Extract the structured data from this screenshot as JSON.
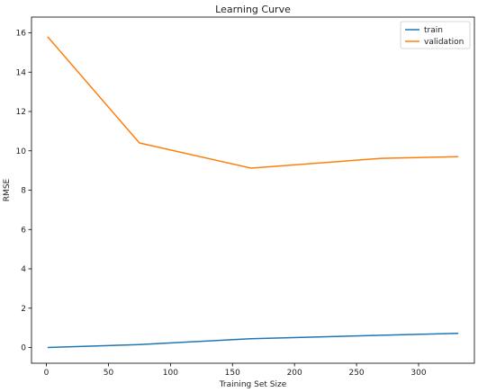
{
  "chart_data": {
    "type": "line",
    "title": "Learning Curve",
    "xlabel": "Training Set Size",
    "ylabel": "RMSE",
    "xlim": [
      -12,
      345
    ],
    "ylim": [
      -0.8,
      16.8
    ],
    "xticks": [
      0,
      50,
      100,
      150,
      200,
      250,
      300
    ],
    "yticks": [
      0,
      2,
      4,
      6,
      8,
      10,
      12,
      14,
      16
    ],
    "grid": false,
    "legend_position": "top-right",
    "series": [
      {
        "name": "train",
        "color": "#1f77b4",
        "x": [
          1,
          75,
          165,
          270,
          332
        ],
        "y": [
          0.0,
          0.15,
          0.45,
          0.62,
          0.72
        ]
      },
      {
        "name": "validation",
        "color": "#ff7f0e",
        "x": [
          1,
          75,
          165,
          270,
          332
        ],
        "y": [
          15.8,
          10.4,
          9.12,
          9.62,
          9.7
        ]
      }
    ]
  }
}
